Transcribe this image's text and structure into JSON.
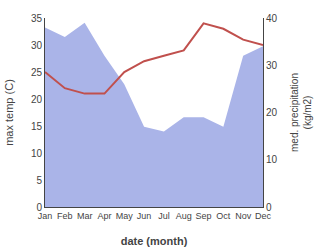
{
  "chart_data": {
    "type": "line",
    "xlabel": "date (month)",
    "ylabel": "max temp (C)",
    "y2label": "med. precipitation\n(kg/m2)",
    "categories": [
      "Jan",
      "Feb",
      "Mar",
      "Apr",
      "May",
      "Jun",
      "Jul",
      "Aug",
      "Sep",
      "Oct",
      "Nov",
      "Dec"
    ],
    "series": [
      {
        "type": "area",
        "axis": "y2",
        "color": "#aab4e8",
        "values": [
          38,
          36,
          39,
          32,
          26,
          17,
          16,
          19,
          19,
          17,
          32,
          34
        ]
      },
      {
        "type": "line",
        "color": "#c0504d",
        "values": [
          25,
          22,
          21,
          21,
          25,
          27,
          28,
          29,
          34,
          33,
          31,
          30
        ]
      }
    ],
    "ylim": [
      0,
      35
    ],
    "yticks": [
      0,
      5,
      10,
      15,
      20,
      25,
      30,
      35
    ],
    "y2lim": [
      0,
      40
    ],
    "y2ticks": [
      0,
      10,
      20,
      30,
      40
    ],
    "grid": false
  }
}
